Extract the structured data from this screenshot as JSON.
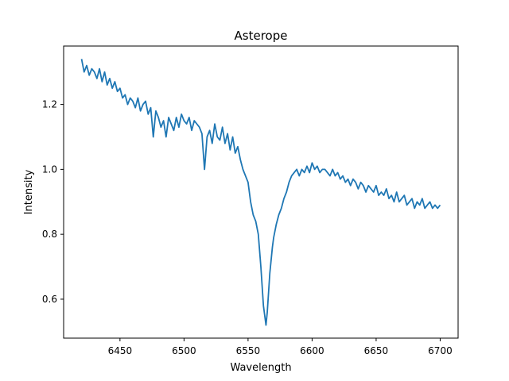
{
  "chart_data": {
    "type": "line",
    "title": "Asterope",
    "xlabel": "Wavelength",
    "ylabel": "Intensity",
    "xlim": [
      6406,
      6714
    ],
    "ylim": [
      0.48,
      1.38
    ],
    "xticks": [
      6450,
      6500,
      6550,
      6600,
      6650,
      6700
    ],
    "yticks": [
      0.6,
      0.8,
      1.0,
      1.2
    ],
    "ytick_labels": [
      "0.6",
      "0.8",
      "1.0",
      "1.2"
    ],
    "grid": false,
    "line_color": "#1f77b4",
    "series": [
      {
        "x": [
          6420,
          6422,
          6424,
          6426,
          6428,
          6430,
          6432,
          6434,
          6436,
          6438,
          6440,
          6442,
          6444,
          6446,
          6448,
          6450,
          6452,
          6454,
          6456,
          6458,
          6460,
          6462,
          6464,
          6466,
          6468,
          6470,
          6472,
          6474,
          6476,
          6478,
          6480,
          6482,
          6484,
          6486,
          6488,
          6490,
          6492,
          6494,
          6496,
          6498,
          6500,
          6502,
          6504,
          6506,
          6508,
          6510,
          6512,
          6514,
          6516,
          6518,
          6520,
          6522,
          6524,
          6526,
          6528,
          6530,
          6532,
          6534,
          6536,
          6538,
          6540,
          6542,
          6544,
          6546,
          6548,
          6550,
          6552,
          6554,
          6556,
          6558,
          6560,
          6561,
          6562,
          6563,
          6564,
          6565,
          6566,
          6567,
          6568,
          6569,
          6570,
          6572,
          6574,
          6576,
          6578,
          6580,
          6582,
          6584,
          6586,
          6588,
          6590,
          6592,
          6594,
          6596,
          6598,
          6600,
          6602,
          6604,
          6606,
          6608,
          6610,
          6612,
          6614,
          6616,
          6618,
          6620,
          6622,
          6624,
          6626,
          6628,
          6630,
          6632,
          6634,
          6636,
          6638,
          6640,
          6642,
          6644,
          6646,
          6648,
          6650,
          6652,
          6654,
          6656,
          6658,
          6660,
          6662,
          6664,
          6666,
          6668,
          6670,
          6672,
          6674,
          6676,
          6678,
          6680,
          6682,
          6684,
          6686,
          6688,
          6690,
          6692,
          6694,
          6696,
          6698,
          6700
        ],
        "y": [
          1.34,
          1.3,
          1.32,
          1.29,
          1.31,
          1.3,
          1.28,
          1.31,
          1.27,
          1.3,
          1.26,
          1.28,
          1.25,
          1.27,
          1.24,
          1.25,
          1.22,
          1.23,
          1.2,
          1.22,
          1.21,
          1.19,
          1.22,
          1.18,
          1.2,
          1.21,
          1.17,
          1.19,
          1.1,
          1.18,
          1.16,
          1.13,
          1.15,
          1.1,
          1.16,
          1.14,
          1.12,
          1.16,
          1.13,
          1.17,
          1.15,
          1.14,
          1.16,
          1.12,
          1.15,
          1.14,
          1.13,
          1.11,
          1.0,
          1.1,
          1.12,
          1.08,
          1.14,
          1.1,
          1.09,
          1.13,
          1.08,
          1.11,
          1.06,
          1.1,
          1.05,
          1.07,
          1.03,
          1.0,
          0.98,
          0.96,
          0.9,
          0.86,
          0.84,
          0.8,
          0.7,
          0.64,
          0.58,
          0.55,
          0.52,
          0.56,
          0.62,
          0.68,
          0.72,
          0.76,
          0.79,
          0.83,
          0.86,
          0.88,
          0.91,
          0.93,
          0.96,
          0.98,
          0.99,
          1.0,
          0.98,
          1.0,
          0.99,
          1.01,
          0.99,
          1.02,
          1.0,
          1.01,
          0.99,
          1.0,
          1.0,
          0.99,
          0.98,
          1.0,
          0.98,
          0.99,
          0.97,
          0.98,
          0.96,
          0.97,
          0.95,
          0.97,
          0.96,
          0.94,
          0.96,
          0.95,
          0.93,
          0.95,
          0.94,
          0.93,
          0.95,
          0.92,
          0.93,
          0.92,
          0.94,
          0.91,
          0.92,
          0.9,
          0.93,
          0.9,
          0.91,
          0.92,
          0.89,
          0.9,
          0.91,
          0.88,
          0.9,
          0.89,
          0.91,
          0.88,
          0.89,
          0.9,
          0.88,
          0.89,
          0.88,
          0.89
        ]
      }
    ]
  }
}
